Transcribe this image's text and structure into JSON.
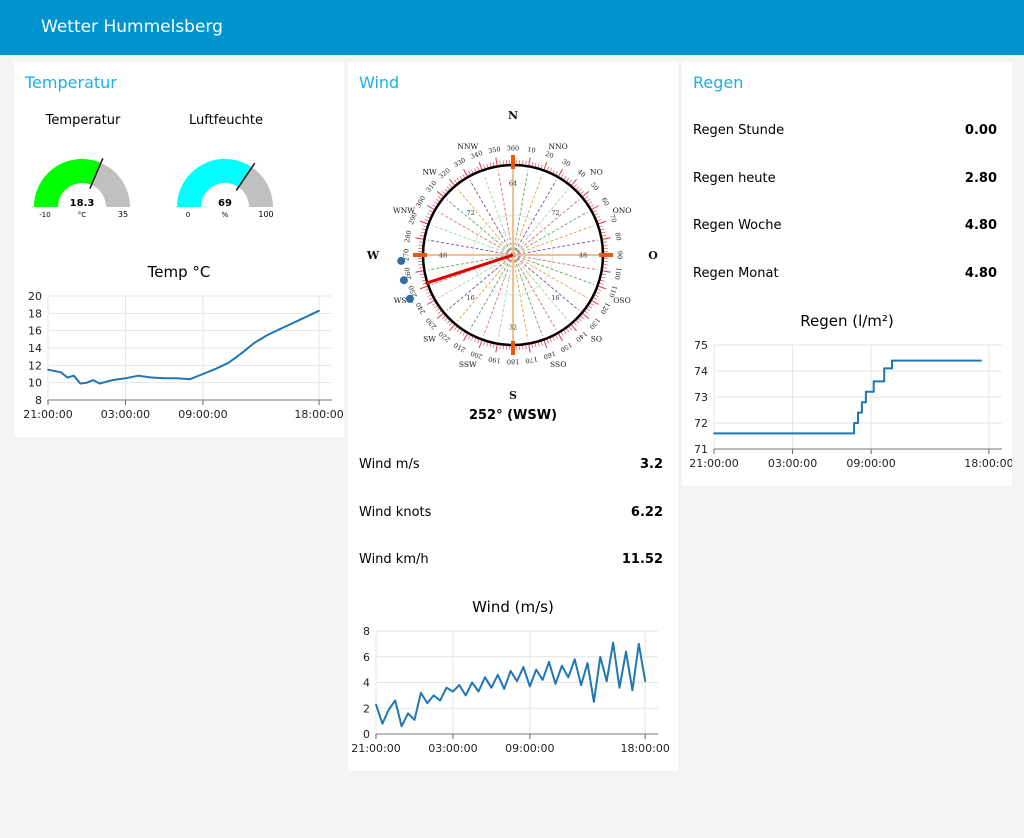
{
  "app": {
    "title": "Wetter Hummelsberg"
  },
  "colors": {
    "header": "#0094ce",
    "card_title": "#1bb0ea",
    "line": "#1f77b4",
    "temp_gauge": "#00ff00",
    "hum_gauge": "#00ffff"
  },
  "temperatur": {
    "title": "Temperatur",
    "gauge_temp": {
      "label": "Temperatur",
      "value": 18.3,
      "value_text": "18.3",
      "unit": "°C",
      "min": -10,
      "max": 35,
      "min_text": "-10",
      "max_text": "35"
    },
    "gauge_hum": {
      "label": "Luftfeuchte",
      "value": 69,
      "value_text": "69",
      "unit": "%",
      "min": 0,
      "max": 100,
      "min_text": "0",
      "max_text": "100"
    }
  },
  "wind": {
    "title": "Wind",
    "direction_deg": 252,
    "direction_text": "252° (WSW)",
    "compass": {
      "cardinals": [
        "N",
        "O",
        "S",
        "W"
      ],
      "intercardinals": [
        "NNO",
        "NO",
        "ONO",
        "OSO",
        "SO",
        "SSO",
        "SSW",
        "SW",
        "WSW",
        "WNW",
        "NW",
        "NNW"
      ],
      "inner_labels": [
        "64",
        "32",
        "48",
        "48",
        "16",
        "16",
        "72",
        "72"
      ]
    },
    "rows": [
      {
        "label": "Wind m/s",
        "value": "3.2"
      },
      {
        "label": "Wind knots",
        "value": "6.22"
      },
      {
        "label": "Wind km/h",
        "value": "11.52"
      }
    ]
  },
  "regen": {
    "title": "Regen",
    "rows": [
      {
        "label": "Regen Stunde",
        "value": "0.00"
      },
      {
        "label": "Regen heute",
        "value": "2.80"
      },
      {
        "label": "Regen Woche",
        "value": "4.80"
      },
      {
        "label": "Regen Monat",
        "value": "4.80"
      }
    ]
  },
  "chart_data": [
    {
      "type": "line",
      "title": "Temp °C",
      "x_ticks": [
        "21:00:00",
        "03:00:00",
        "09:00:00",
        "18:00:00"
      ],
      "x_tick_hours": [
        0,
        6,
        12,
        21
      ],
      "ylim": [
        8,
        20
      ],
      "y_ticks": [
        8,
        10,
        12,
        14,
        16,
        18,
        20
      ],
      "grid": true,
      "x_hours": [
        0,
        1,
        1.5,
        2,
        2.5,
        3,
        3.5,
        4,
        4.5,
        5,
        6,
        7,
        8,
        9,
        10,
        11,
        12,
        13,
        14,
        15,
        16,
        17,
        18,
        19,
        20,
        21
      ],
      "values": [
        11.5,
        11.2,
        10.6,
        10.8,
        9.9,
        10.0,
        10.3,
        9.9,
        10.1,
        10.3,
        10.5,
        10.8,
        10.6,
        10.5,
        10.5,
        10.4,
        11.0,
        11.6,
        12.3,
        13.4,
        14.6,
        15.5,
        16.2,
        16.9,
        17.6,
        18.3
      ]
    },
    {
      "type": "line",
      "title": "Wind (m/s)",
      "x_ticks": [
        "21:00:00",
        "03:00:00",
        "09:00:00",
        "18:00:00"
      ],
      "x_tick_hours": [
        0,
        6,
        12,
        21
      ],
      "ylim": [
        0,
        8
      ],
      "y_ticks": [
        0,
        2,
        4,
        6,
        8
      ],
      "grid": true,
      "x_hours": [
        0,
        0.5,
        1,
        1.5,
        2,
        2.5,
        3,
        3.5,
        4,
        4.5,
        5,
        5.5,
        6,
        6.5,
        7,
        7.5,
        8,
        8.5,
        9,
        9.5,
        10,
        10.5,
        11,
        11.5,
        12,
        12.5,
        13,
        13.5,
        14,
        14.5,
        15,
        15.5,
        16,
        16.5,
        17,
        17.5,
        18,
        18.5,
        19,
        19.5,
        20,
        20.5,
        21
      ],
      "values": [
        2.3,
        0.8,
        1.9,
        2.6,
        0.6,
        1.6,
        1.1,
        3.2,
        2.4,
        3.0,
        2.6,
        3.6,
        3.3,
        3.8,
        3.0,
        4.0,
        3.3,
        4.4,
        3.6,
        4.6,
        3.5,
        4.9,
        4.1,
        5.2,
        3.7,
        5.0,
        4.2,
        5.6,
        3.9,
        5.3,
        4.4,
        5.8,
        3.8,
        5.5,
        2.5,
        6.0,
        4.1,
        7.1,
        3.6,
        6.4,
        3.4,
        7.0,
        4.1
      ]
    },
    {
      "type": "line",
      "title": "Regen (l/m²)",
      "x_ticks": [
        "21:00:00",
        "03:00:00",
        "09:00:00",
        "18:00:00"
      ],
      "x_tick_hours": [
        0,
        6,
        12,
        21
      ],
      "ylim": [
        71,
        75
      ],
      "y_ticks": [
        71,
        72,
        73,
        74,
        75
      ],
      "grid": true,
      "x_hours": [
        0,
        10.7,
        10.7,
        11.0,
        11.0,
        11.3,
        11.3,
        11.6,
        11.6,
        12.2,
        12.2,
        13.0,
        13.0,
        13.6,
        13.6,
        20.4
      ],
      "values": [
        71.6,
        71.6,
        72.0,
        72.0,
        72.4,
        72.4,
        72.8,
        72.8,
        73.2,
        73.2,
        73.6,
        73.6,
        74.1,
        74.1,
        74.4,
        74.4
      ]
    }
  ]
}
